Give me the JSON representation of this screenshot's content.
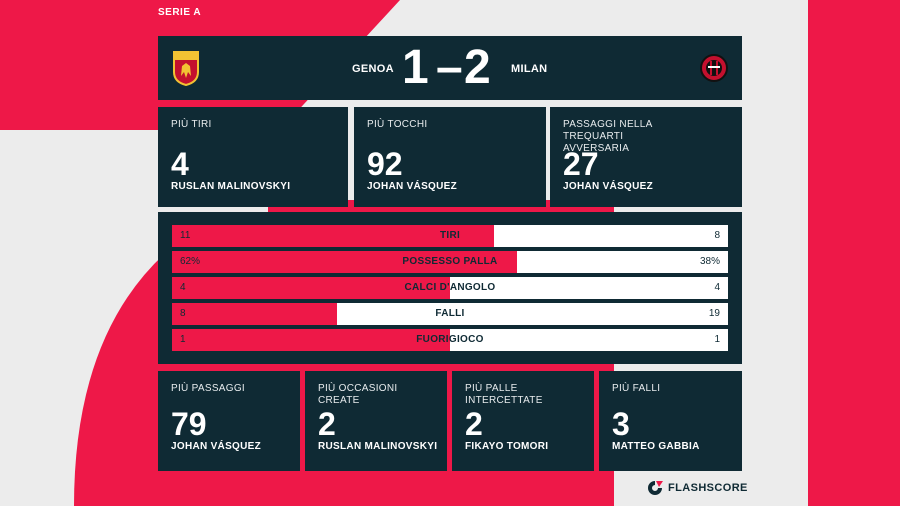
{
  "league": "SERIE A",
  "match": {
    "home_team": "GENOA",
    "away_team": "MILAN",
    "home_score": "1",
    "separator": "–",
    "away_score": "2"
  },
  "top_cards": [
    {
      "label": "PIÙ TIRI",
      "value": "4",
      "player": "RUSLAN MALINOVSKYI"
    },
    {
      "label": "PIÙ TOCCHI",
      "value": "92",
      "player": "JOHAN VÁSQUEZ"
    },
    {
      "label": "PASSAGGI NELLA TREQUARTI AVVERSARIA",
      "value": "27",
      "player": "JOHAN VÁSQUEZ"
    }
  ],
  "stats": [
    {
      "name": "TIRI",
      "home": "11",
      "away": "8",
      "home_share": 0.579
    },
    {
      "name": "POSSESSO PALLA",
      "home": "62%",
      "away": "38%",
      "home_share": 0.62
    },
    {
      "name": "CALCI D'ANGOLO",
      "home": "4",
      "away": "4",
      "home_share": 0.5
    },
    {
      "name": "FALLI",
      "home": "8",
      "away": "19",
      "home_share": 0.296
    },
    {
      "name": "FUORIGIOCO",
      "home": "1",
      "away": "1",
      "home_share": 0.5
    }
  ],
  "bottom_cards": [
    {
      "label": "PIÙ PASSAGGI",
      "value": "79",
      "player": "JOHAN VÁSQUEZ"
    },
    {
      "label": "PIÙ OCCASIONI CREATE",
      "value": "2",
      "player": "RUSLAN MALINOVSKYI"
    },
    {
      "label": "PIÙ PALLE INTERCETTATE",
      "value": "2",
      "player": "FIKAYO TOMORI"
    },
    {
      "label": "PIÙ FALLI",
      "value": "3",
      "player": "MATTEO GABBIA"
    }
  ],
  "brand": "FLASHSCORE",
  "colors": {
    "accent": "#ee1848",
    "panel": "#0f2a34",
    "background": "#ececec"
  },
  "icons": {
    "home_crest": "genoa-crest-icon",
    "away_crest": "milan-crest-icon",
    "brand_logo": "flashscore-logo-icon"
  }
}
